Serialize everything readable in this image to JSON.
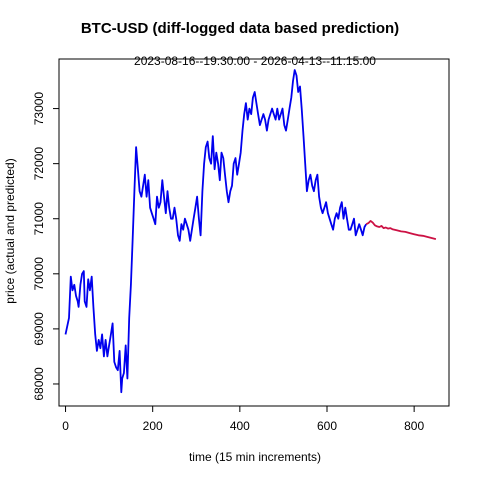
{
  "chart_data": {
    "type": "line",
    "title": "BTC-USD (diff-logged data based prediction)",
    "subtitle": "2023-08-16--19:30:00  -  2026-04-13--11:15:00",
    "xlabel": "time (15 min increments)",
    "ylabel": "price (actual and predicted)",
    "xlim": [
      -15,
      880
    ],
    "ylim": [
      67600,
      73900
    ],
    "xticks": [
      0,
      200,
      400,
      600,
      800
    ],
    "yticks": [
      68000,
      69000,
      70000,
      71000,
      72000,
      73000
    ],
    "grid": false,
    "series": [
      {
        "color": "#0000ee",
        "x": [
          0,
          8,
          12,
          16,
          20,
          24,
          28,
          30,
          34,
          38,
          42,
          44,
          48,
          52,
          56,
          60,
          64,
          68,
          72,
          76,
          80,
          84,
          88,
          92,
          96,
          100,
          104,
          108,
          112,
          116,
          120,
          124,
          128,
          130,
          134,
          138,
          142,
          146,
          150,
          154,
          158,
          162,
          166,
          170,
          174,
          178,
          182,
          186,
          190,
          194,
          198,
          202,
          206,
          210,
          214,
          218,
          222,
          226,
          230,
          234,
          238,
          242,
          246,
          250,
          254,
          258,
          262,
          266,
          270,
          274,
          278,
          282,
          286,
          290,
          294,
          298,
          302,
          306,
          310,
          314,
          318,
          322,
          326,
          330,
          334,
          338,
          342,
          346,
          350,
          354,
          358,
          362,
          366,
          370,
          374,
          378,
          382,
          386,
          390,
          394,
          398,
          402,
          406,
          410,
          414,
          418,
          422,
          426,
          430,
          434,
          438,
          442,
          446,
          450,
          454,
          458,
          462,
          466,
          470,
          474,
          478,
          482,
          486,
          490,
          494,
          498,
          502,
          506,
          510,
          514,
          518,
          522,
          526,
          530,
          534,
          538,
          542,
          546,
          550,
          554,
          558,
          562,
          566,
          570,
          574,
          578,
          582,
          586,
          590,
          594,
          598,
          602,
          606,
          610,
          614,
          618,
          622,
          626,
          630,
          634,
          638,
          642,
          646,
          650,
          654,
          658,
          662,
          666,
          670,
          674,
          678,
          682,
          686,
          690
        ],
        "values": [
          68900,
          69200,
          69950,
          69700,
          69800,
          69600,
          69500,
          69400,
          69800,
          70000,
          70050,
          69500,
          69400,
          69900,
          69700,
          69950,
          69400,
          68900,
          68600,
          68800,
          68650,
          68900,
          68500,
          68800,
          68500,
          68700,
          68900,
          69100,
          68400,
          68300,
          68250,
          68600,
          67850,
          68100,
          68200,
          68700,
          68100,
          69200,
          69800,
          70600,
          71500,
          72300,
          71900,
          71500,
          71400,
          71600,
          71800,
          71400,
          71700,
          71200,
          71100,
          71000,
          70900,
          71400,
          71200,
          71300,
          71700,
          71400,
          71100,
          71500,
          71200,
          71000,
          71000,
          71200,
          71000,
          70700,
          70600,
          70900,
          70800,
          71000,
          70900,
          70800,
          70600,
          70800,
          71000,
          71200,
          71400,
          71000,
          70700,
          71500,
          72000,
          72300,
          72400,
          72100,
          72000,
          72500,
          71900,
          72200,
          72000,
          71700,
          72200,
          72100,
          71800,
          71500,
          71300,
          71500,
          71600,
          72000,
          72100,
          71800,
          72000,
          72200,
          72600,
          72900,
          73100,
          72800,
          73000,
          72900,
          73200,
          73300,
          73100,
          72900,
          72700,
          72800,
          72900,
          72800,
          72600,
          72800,
          72900,
          73000,
          72900,
          72800,
          73000,
          72800,
          72900,
          73000,
          72700,
          72600,
          72800,
          73000,
          73200,
          73500,
          73700,
          73600,
          73300,
          73400,
          73000,
          72500,
          72000,
          71500,
          71700,
          71800,
          71600,
          71500,
          71700,
          71800,
          71400,
          71200,
          71100,
          71200,
          71300,
          71100,
          71000,
          70900,
          70800,
          71000,
          71100,
          71000,
          71200,
          71300,
          71000,
          71200,
          71000,
          70800,
          70800,
          70900,
          71000,
          70700,
          70800,
          70900,
          70800,
          70700,
          70850,
          70900
        ]
      },
      {
        "color": "#cc1144",
        "x": [
          690,
          695,
          700,
          705,
          710,
          715,
          720,
          725,
          730,
          735,
          740,
          745,
          750,
          760,
          770,
          780,
          790,
          800,
          810,
          820,
          830,
          840,
          850
        ],
        "values": [
          70900,
          70920,
          70960,
          70930,
          70880,
          70860,
          70850,
          70870,
          70830,
          70840,
          70820,
          70830,
          70810,
          70790,
          70770,
          70760,
          70740,
          70720,
          70700,
          70690,
          70670,
          70650,
          70630
        ]
      }
    ]
  }
}
